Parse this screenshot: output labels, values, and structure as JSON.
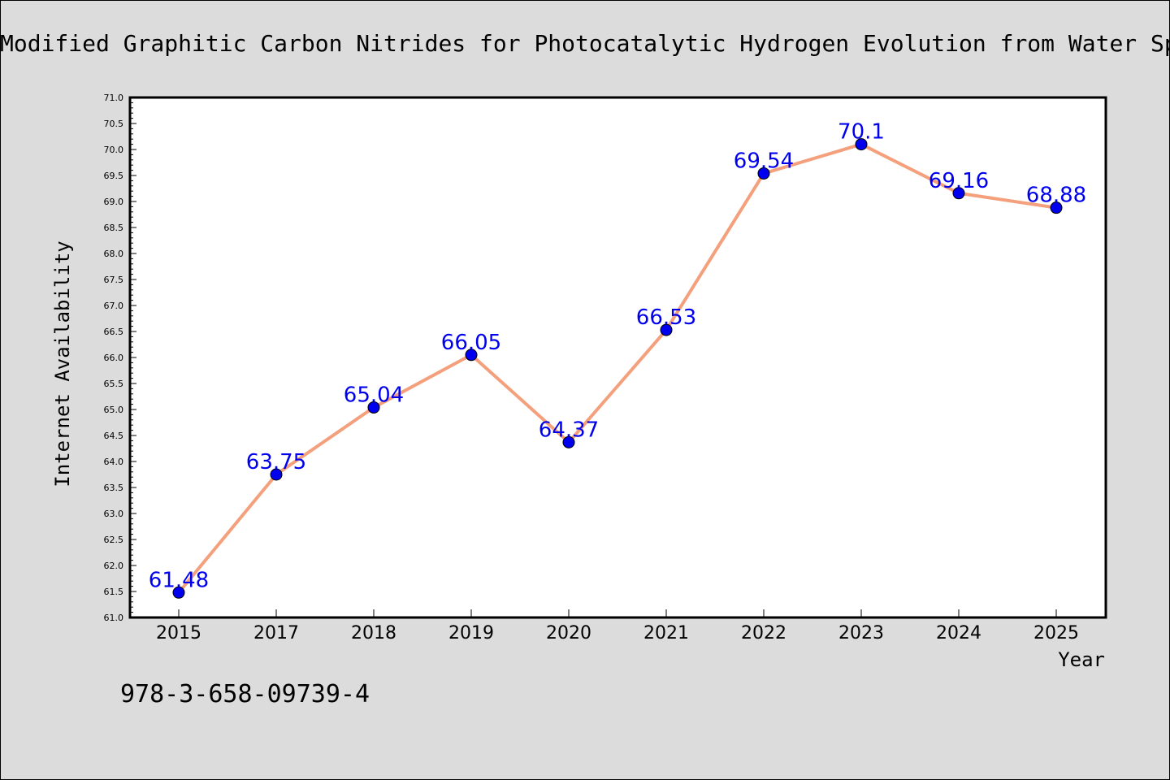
{
  "chart_data": {
    "type": "line",
    "title": "Modified Graphitic Carbon Nitrides for Photocatalytic Hydrogen Evolution from Water Splitting",
    "xlabel": "Year",
    "ylabel": "Internet Availability",
    "categories": [
      "2015",
      "2017",
      "2018",
      "2019",
      "2020",
      "2021",
      "2022",
      "2023",
      "2024",
      "2025"
    ],
    "series": [
      {
        "values": [
          61.48,
          63.75,
          65.04,
          66.05,
          64.37,
          66.53,
          69.54,
          70.1,
          69.16,
          68.88
        ],
        "labels": [
          "61.48",
          "63.75",
          "65.04",
          "66.05",
          "64.37",
          "66.53",
          "69.54",
          "70.1",
          "69.16",
          "68.88"
        ]
      }
    ],
    "ylim": [
      61.0,
      71.0
    ],
    "yticks": [
      "61.0",
      "61.5",
      "62.0",
      "62.5",
      "63.0",
      "63.5",
      "64.0",
      "64.5",
      "65.0",
      "65.5",
      "66.0",
      "66.5",
      "67.0",
      "67.5",
      "68.0",
      "68.5",
      "69.0",
      "69.5",
      "70.0",
      "70.5",
      "71.0"
    ],
    "grid": false,
    "line_color": "#f4a07c",
    "marker_color": "#0000ee",
    "label_color": "#0000ee"
  },
  "footer": {
    "isbn": "978-3-658-09739-4"
  }
}
